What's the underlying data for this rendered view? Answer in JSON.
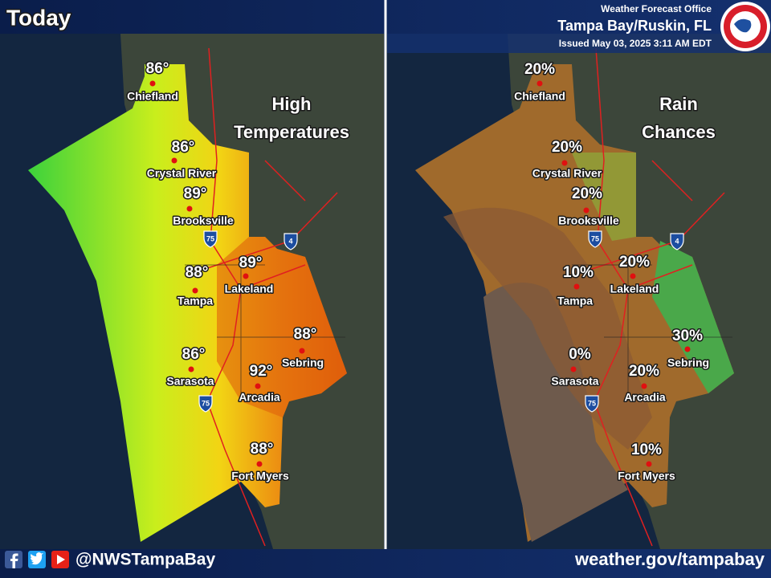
{
  "header": {
    "title": "Today",
    "office": "Weather Forecast Office",
    "location": "Tampa Bay/Ruskin, FL",
    "issued": "Issued May 03, 2025 3:11 AM EDT"
  },
  "panels": [
    {
      "title_lines": [
        "High",
        "Temperatures"
      ],
      "points": [
        {
          "city": "Chiefland",
          "label": "86°"
        },
        {
          "city": "Crystal River",
          "label": "86°"
        },
        {
          "city": "Brooksville",
          "label": "89°"
        },
        {
          "city": "Tampa",
          "label": "88°"
        },
        {
          "city": "Lakeland",
          "label": "89°"
        },
        {
          "city": "Sarasota",
          "label": "86°"
        },
        {
          "city": "Arcadia",
          "label": "92°"
        },
        {
          "city": "Sebring",
          "label": "88°"
        },
        {
          "city": "Fort Myers",
          "label": "88°"
        }
      ]
    },
    {
      "title_lines": [
        "Rain",
        "Chances"
      ],
      "points": [
        {
          "city": "Chiefland",
          "label": "20%"
        },
        {
          "city": "Crystal River",
          "label": "20%"
        },
        {
          "city": "Brooksville",
          "label": "20%"
        },
        {
          "city": "Tampa",
          "label": "10%"
        },
        {
          "city": "Lakeland",
          "label": "20%"
        },
        {
          "city": "Sarasota",
          "label": "0%"
        },
        {
          "city": "Arcadia",
          "label": "20%"
        },
        {
          "city": "Sebring",
          "label": "30%"
        },
        {
          "city": "Fort Myers",
          "label": "10%"
        }
      ]
    }
  ],
  "highways": [
    "75",
    "4"
  ],
  "footer": {
    "social": "@NWSTampaBay",
    "website": "weather.gov/tampabay"
  }
}
